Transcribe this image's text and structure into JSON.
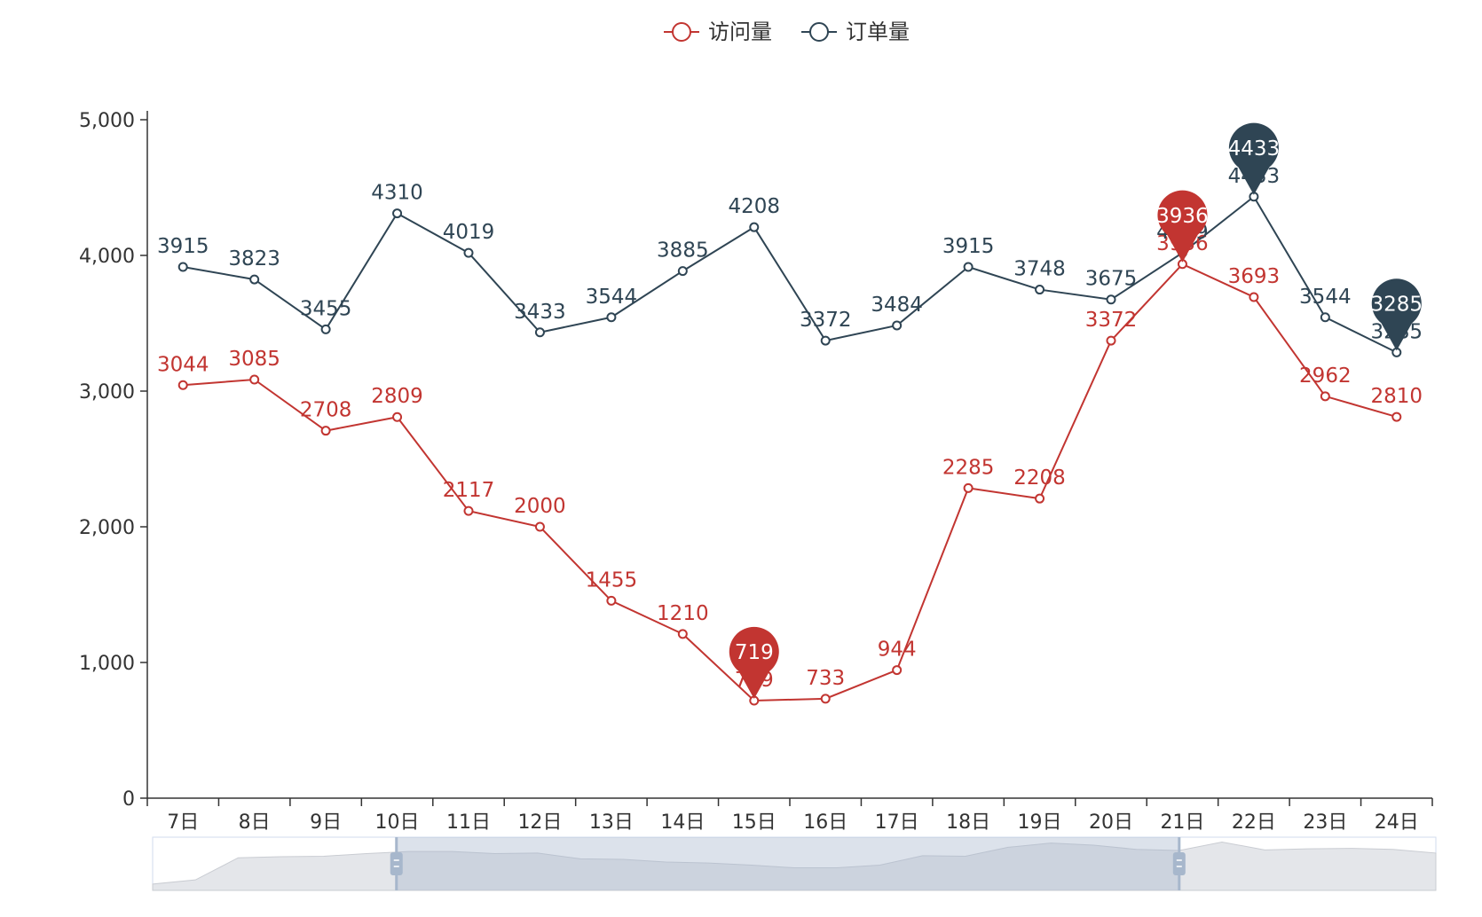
{
  "chart_data": {
    "type": "line",
    "categories": [
      "7日",
      "8日",
      "9日",
      "10日",
      "11日",
      "12日",
      "13日",
      "14日",
      "15日",
      "16日",
      "17日",
      "18日",
      "19日",
      "20日",
      "21日",
      "22日",
      "23日",
      "24日"
    ],
    "series": [
      {
        "name": "访问量",
        "color": "#c23531",
        "values": [
          3044,
          3085,
          2708,
          2809,
          2117,
          2000,
          1455,
          1210,
          719,
          733,
          944,
          2285,
          2208,
          3372,
          3936,
          3693,
          2962,
          2810
        ],
        "markPoints": [
          {
            "type": "min",
            "category": "15日",
            "value": 719
          },
          {
            "type": "max",
            "category": "21日",
            "value": 3936
          }
        ]
      },
      {
        "name": "订单量",
        "color": "#2f4554",
        "values": [
          3915,
          3823,
          3455,
          4310,
          4019,
          3433,
          3544,
          3885,
          4208,
          3372,
          3484,
          3915,
          3748,
          3675,
          4019,
          4433,
          3544,
          3285
        ],
        "markPoints": [
          {
            "type": "max",
            "category": "22日",
            "value": 4433
          },
          {
            "type": "last",
            "category": "24日",
            "value": 3285
          }
        ]
      }
    ],
    "y_axis": {
      "min": 0,
      "max": 5000,
      "ticks": [
        0,
        1000,
        2000,
        3000,
        4000,
        5000
      ],
      "tick_labels": [
        "0",
        "1,000",
        "2,000",
        "3,000",
        "4,000",
        "5,000"
      ]
    },
    "legend_position": "top-center",
    "grid": false,
    "data_zoom": {
      "start_fraction": 0.19,
      "end_fraction": 0.8,
      "preview_values": [
        120,
        200,
        620,
        640,
        650,
        700,
        740,
        740,
        700,
        710,
        600,
        590,
        540,
        520,
        480,
        430,
        430,
        480,
        660,
        650,
        820,
        900,
        860,
        780,
        760,
        920,
        770,
        790,
        800,
        780,
        710
      ]
    }
  }
}
